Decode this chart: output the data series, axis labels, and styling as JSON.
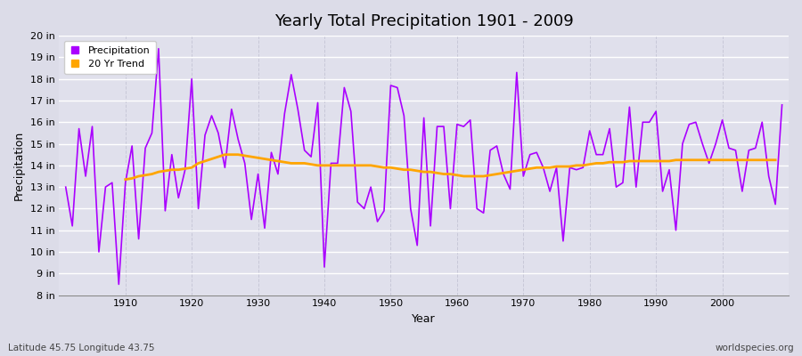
{
  "title": "Yearly Total Precipitation 1901 - 2009",
  "xlabel": "Year",
  "ylabel": "Precipitation",
  "subtitle_left": "Latitude 45.75 Longitude 43.75",
  "subtitle_right": "worldspecies.org",
  "precip_color": "#AA00FF",
  "trend_color": "#FFA500",
  "bg_color": "#DCDCE8",
  "plot_bg_color": "#E0E0EC",
  "ylim": [
    8,
    20
  ],
  "yticks": [
    8,
    9,
    10,
    11,
    12,
    13,
    14,
    15,
    16,
    17,
    18,
    19,
    20
  ],
  "ytick_labels": [
    "8 in",
    "9 in",
    "10 in",
    "11 in",
    "12 in",
    "13 in",
    "14 in",
    "15 in",
    "16 in",
    "17 in",
    "18 in",
    "19 in",
    "20 in"
  ],
  "xticks": [
    1910,
    1920,
    1930,
    1940,
    1950,
    1960,
    1970,
    1980,
    1990,
    2000
  ],
  "years": [
    1901,
    1902,
    1903,
    1904,
    1905,
    1906,
    1907,
    1908,
    1909,
    1910,
    1911,
    1912,
    1913,
    1914,
    1915,
    1916,
    1917,
    1918,
    1919,
    1920,
    1921,
    1922,
    1923,
    1924,
    1925,
    1926,
    1927,
    1928,
    1929,
    1930,
    1931,
    1932,
    1933,
    1934,
    1935,
    1936,
    1937,
    1938,
    1939,
    1940,
    1941,
    1942,
    1943,
    1944,
    1945,
    1946,
    1947,
    1948,
    1949,
    1950,
    1951,
    1952,
    1953,
    1954,
    1955,
    1956,
    1957,
    1958,
    1959,
    1960,
    1961,
    1962,
    1963,
    1964,
    1965,
    1966,
    1967,
    1968,
    1969,
    1970,
    1971,
    1972,
    1973,
    1974,
    1975,
    1976,
    1977,
    1978,
    1979,
    1980,
    1981,
    1982,
    1983,
    1984,
    1985,
    1986,
    1987,
    1988,
    1989,
    1990,
    1991,
    1992,
    1993,
    1994,
    1995,
    1996,
    1997,
    1998,
    1999,
    2000,
    2001,
    2002,
    2003,
    2004,
    2005,
    2006,
    2007,
    2008,
    2009
  ],
  "precip": [
    13.0,
    11.2,
    15.7,
    13.5,
    15.8,
    10.0,
    13.0,
    13.2,
    8.5,
    13.2,
    14.9,
    10.6,
    14.8,
    15.5,
    19.4,
    11.9,
    14.5,
    12.5,
    13.8,
    18.0,
    12.0,
    15.4,
    16.3,
    15.5,
    13.9,
    16.6,
    15.2,
    14.1,
    11.5,
    13.6,
    11.1,
    14.6,
    13.6,
    16.4,
    18.2,
    16.6,
    14.7,
    14.4,
    16.9,
    9.3,
    14.1,
    14.1,
    17.6,
    16.5,
    12.3,
    12.0,
    13.0,
    11.4,
    11.9,
    17.7,
    17.6,
    16.3,
    12.0,
    10.3,
    16.2,
    11.2,
    15.8,
    15.8,
    12.0,
    15.9,
    15.8,
    16.1,
    12.0,
    11.8,
    14.7,
    14.9,
    13.6,
    12.9,
    18.3,
    13.5,
    14.5,
    14.6,
    13.9,
    12.8,
    13.9,
    10.5,
    13.9,
    13.8,
    13.9,
    15.6,
    14.5,
    14.5,
    15.7,
    13.0,
    13.2,
    16.7,
    13.0,
    16.0,
    16.0,
    16.5,
    12.8,
    13.8,
    11.0,
    15.0,
    15.9,
    16.0,
    15.0,
    14.1,
    15.0,
    16.1,
    14.8,
    14.7,
    12.8,
    14.7,
    14.8,
    16.0,
    13.5,
    12.2,
    16.8
  ],
  "trend_start_year": 1910,
  "trend": [
    13.35,
    13.4,
    13.5,
    13.55,
    13.6,
    13.7,
    13.75,
    13.8,
    13.8,
    13.85,
    13.9,
    14.1,
    14.2,
    14.3,
    14.4,
    14.5,
    14.5,
    14.5,
    14.45,
    14.4,
    14.35,
    14.3,
    14.25,
    14.2,
    14.15,
    14.1,
    14.1,
    14.1,
    14.05,
    14.0,
    14.0,
    14.0,
    14.0,
    14.0,
    14.0,
    14.0,
    14.0,
    14.0,
    13.95,
    13.9,
    13.9,
    13.85,
    13.8,
    13.8,
    13.75,
    13.7,
    13.7,
    13.65,
    13.6,
    13.6,
    13.55,
    13.5,
    13.5,
    13.5,
    13.5,
    13.55,
    13.6,
    13.65,
    13.7,
    13.75,
    13.8,
    13.85,
    13.9,
    13.9,
    13.9,
    13.95,
    13.95,
    13.95,
    14.0,
    14.0,
    14.05,
    14.1,
    14.1,
    14.15,
    14.15,
    14.15,
    14.2,
    14.2,
    14.2,
    14.2,
    14.2,
    14.2,
    14.2,
    14.25,
    14.25,
    14.25,
    14.25,
    14.25,
    14.25,
    14.25,
    14.25,
    14.25,
    14.25,
    14.25,
    14.25,
    14.25,
    14.25,
    14.25,
    14.25
  ]
}
